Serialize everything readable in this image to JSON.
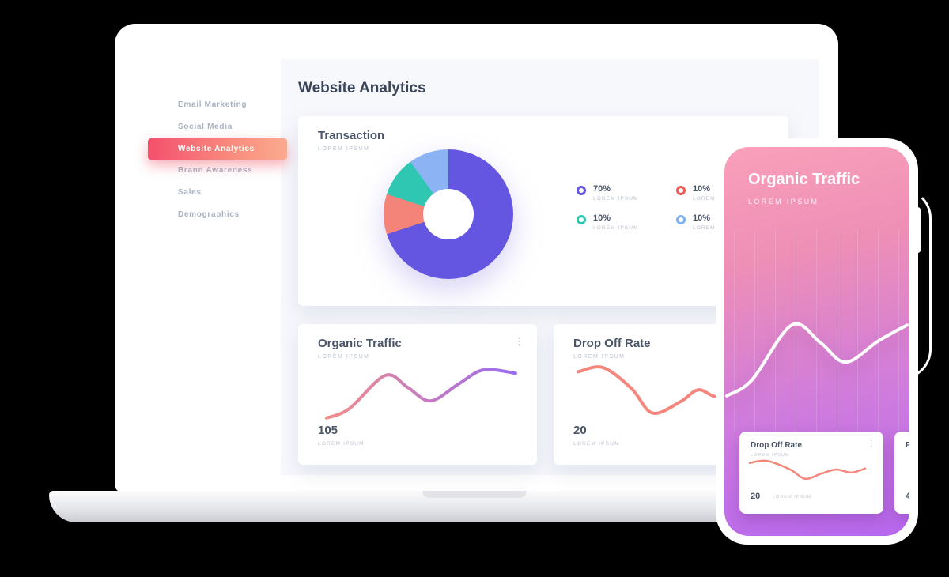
{
  "colors": {
    "active_pill_from": "#f4506d",
    "active_pill_to": "#fbaa90",
    "phone_gradient_from": "#f9a0ba",
    "phone_gradient_to": "#b768ef",
    "donut_purple": "#6456e0",
    "donut_salmon": "#f4837a",
    "donut_teal": "#2fc7b2",
    "donut_blue": "#8cb4f4"
  },
  "icons": {
    "kebab": "⋮"
  },
  "sidebar": {
    "items": [
      {
        "label": "Email Marketing",
        "active": false
      },
      {
        "label": "Social Media",
        "active": false
      },
      {
        "label": "Website Analytics",
        "active": true
      },
      {
        "label": "Brand Awareness",
        "active": false
      },
      {
        "label": "Sales",
        "active": false
      },
      {
        "label": "Demographics",
        "active": false
      }
    ]
  },
  "main": {
    "title": "Website Analytics"
  },
  "transaction_card": {
    "title": "Transaction",
    "subtitle": "LOREM IPSUM",
    "legend": [
      {
        "value": "70%",
        "label": "LOREM IPSUM",
        "color": "#6456e0"
      },
      {
        "value": "10%",
        "label": "LOREM IPSUM",
        "color": "#f25a54"
      },
      {
        "value": "10%",
        "label": "LOREM IPSUM",
        "color": "#2fc7b2"
      },
      {
        "value": "10%",
        "label": "LOREM IPSUM",
        "color": "#7fb0f5"
      }
    ]
  },
  "organic_card": {
    "title": "Organic Traffic",
    "subtitle": "LOREM IPSUM",
    "value": "105",
    "value_label": "LOREM IPSUM"
  },
  "dropoff_card": {
    "title": "Drop Off Rate",
    "subtitle": "LOREM IPSUM",
    "value": "20",
    "value_label": "LOREM IPSUM"
  },
  "phone": {
    "title": "Organic Traffic",
    "subtitle": "LOREM IPSUM",
    "cards": [
      {
        "title": "Drop Off Rate",
        "subtitle": "LOREM IPSUM",
        "value": "20",
        "value_label": "LOREM IPSUM"
      },
      {
        "title": "R",
        "value": "4"
      }
    ]
  },
  "chart_data": [
    {
      "type": "pie",
      "title": "Transaction",
      "donut": true,
      "labels": [
        "LOREM IPSUM",
        "LOREM IPSUM",
        "LOREM IPSUM",
        "LOREM IPSUM"
      ],
      "values": [
        70,
        10,
        10,
        10
      ],
      "unit": "%",
      "colors": [
        "#6456e0",
        "#f4837a",
        "#2fc7b2",
        "#8cb4f4"
      ],
      "legend_position": "right"
    },
    {
      "type": "line",
      "title": "Organic Traffic",
      "current_value": 105,
      "color_from": "#f28d8a",
      "color_to": "#9a6cf0",
      "points": [
        [
          0,
          0.97
        ],
        [
          0.12,
          0.8
        ],
        [
          0.31,
          0.2
        ],
        [
          0.43,
          0.42
        ],
        [
          0.55,
          0.66
        ],
        [
          0.7,
          0.35
        ],
        [
          0.83,
          0.1
        ],
        [
          1,
          0.16
        ]
      ]
    },
    {
      "type": "line",
      "title": "Drop Off Rate",
      "current_value": 20,
      "color": "#f4867c",
      "points": [
        [
          0,
          0.14
        ],
        [
          0.14,
          0.06
        ],
        [
          0.3,
          0.45
        ],
        [
          0.42,
          0.92
        ],
        [
          0.58,
          0.7
        ],
        [
          0.68,
          0.48
        ],
        [
          0.8,
          0.62
        ],
        [
          1,
          0.42
        ]
      ]
    },
    {
      "type": "line",
      "title": "Organic Traffic (phone)",
      "color": "#ffffff",
      "points": [
        [
          0,
          0.9
        ],
        [
          0.14,
          0.72
        ],
        [
          0.36,
          0.1
        ],
        [
          0.52,
          0.3
        ],
        [
          0.66,
          0.52
        ],
        [
          0.84,
          0.28
        ],
        [
          1,
          0.1
        ]
      ]
    },
    {
      "type": "line",
      "title": "Drop Off Rate (phone)",
      "current_value": 20,
      "color": "#f4867c",
      "points": [
        [
          0,
          0.18
        ],
        [
          0.15,
          0.08
        ],
        [
          0.35,
          0.5
        ],
        [
          0.48,
          0.95
        ],
        [
          0.62,
          0.7
        ],
        [
          0.75,
          0.5
        ],
        [
          0.88,
          0.65
        ],
        [
          1,
          0.45
        ]
      ]
    }
  ]
}
